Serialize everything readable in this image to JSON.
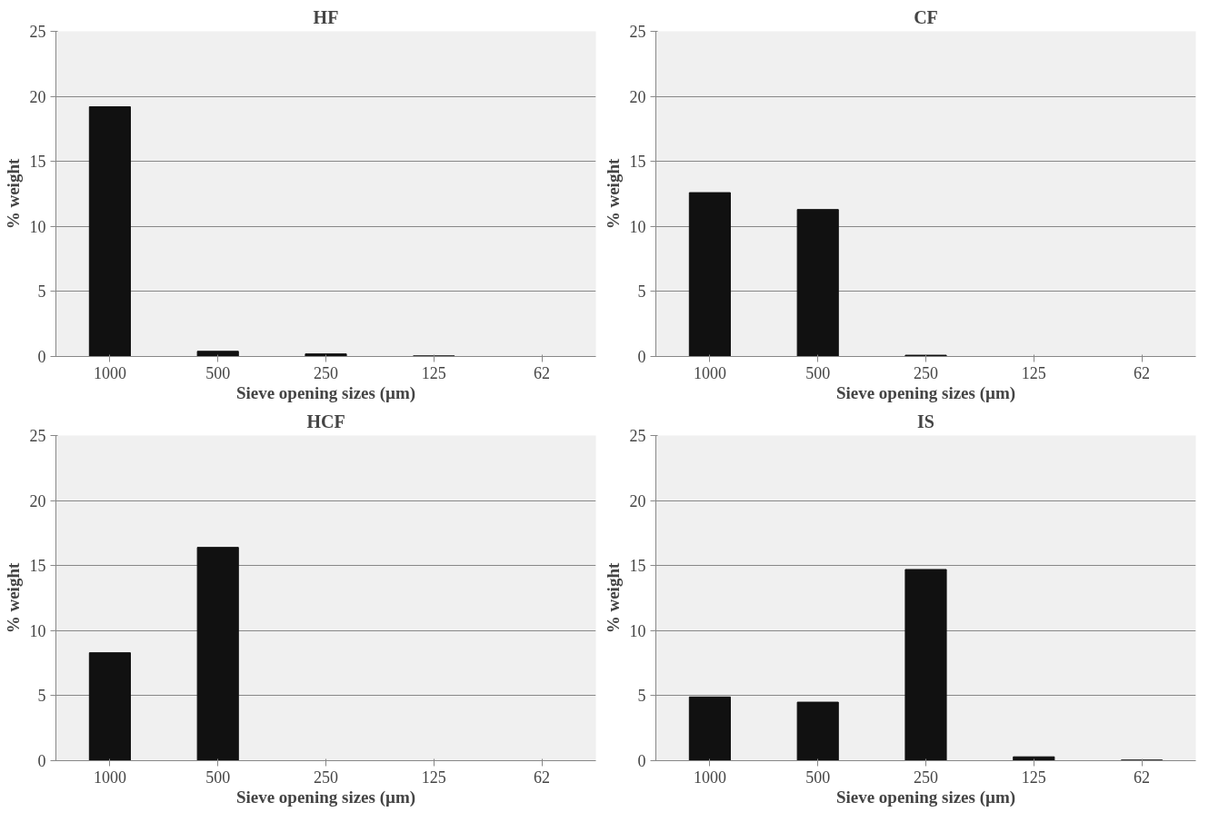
{
  "chart_data": [
    {
      "type": "bar",
      "title": "HF",
      "xlabel": "Sieve opening sizes (µm)",
      "ylabel": "% weight",
      "categories": [
        "1000",
        "500",
        "250",
        "125",
        "62"
      ],
      "values": [
        19.2,
        0.4,
        0.2,
        0.05,
        0
      ],
      "color": "#111111",
      "ylim": [
        0,
        25
      ],
      "yticks": [
        0,
        5,
        10,
        15,
        20,
        25
      ],
      "grid": "y"
    },
    {
      "type": "bar",
      "title": "CF",
      "xlabel": "Sieve opening sizes (µm)",
      "ylabel": "% weight",
      "categories": [
        "1000",
        "500",
        "250",
        "125",
        "62"
      ],
      "values": [
        12.6,
        11.3,
        0.1,
        0,
        0
      ],
      "color": "#111111",
      "ylim": [
        0,
        25
      ],
      "yticks": [
        0,
        5,
        10,
        15,
        20,
        25
      ],
      "grid": "y"
    },
    {
      "type": "bar",
      "title": "HCF",
      "xlabel": "Sieve opening sizes (µm)",
      "ylabel": "% weight",
      "categories": [
        "1000",
        "500",
        "250",
        "125",
        "62"
      ],
      "values": [
        8.3,
        16.4,
        0,
        0,
        0
      ],
      "color": "#111111",
      "ylim": [
        0,
        25
      ],
      "yticks": [
        0,
        5,
        10,
        15,
        20,
        25
      ],
      "grid": "y"
    },
    {
      "type": "bar",
      "title": "IS",
      "xlabel": "Sieve opening sizes (µm)",
      "ylabel": "% weight",
      "categories": [
        "1000",
        "500",
        "250",
        "125",
        "62"
      ],
      "values": [
        4.9,
        4.5,
        14.7,
        0.3,
        0.05
      ],
      "color": "#111111",
      "ylim": [
        0,
        25
      ],
      "yticks": [
        0,
        5,
        10,
        15,
        20,
        25
      ],
      "grid": "y"
    }
  ]
}
